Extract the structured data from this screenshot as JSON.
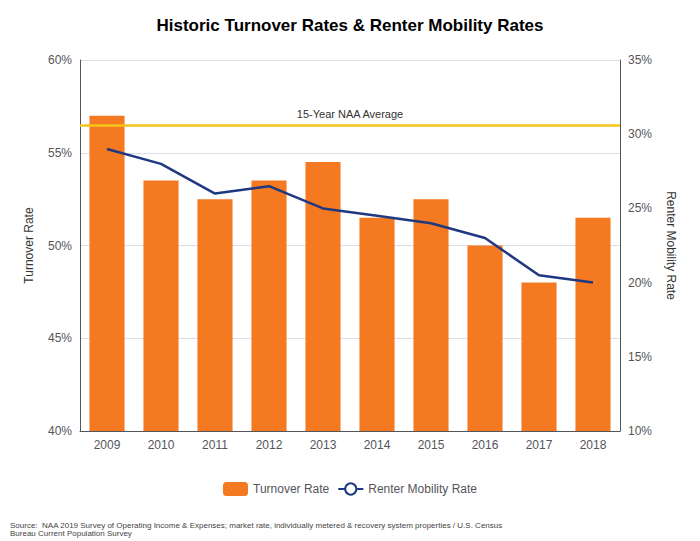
{
  "chart_data": {
    "type": "bar",
    "title": "Historic Turnover Rates & Renter Mobility Rates",
    "ylabel": "Turnover Rate",
    "y2label": "Renter Mobility Rate",
    "categories": [
      "2009",
      "2010",
      "2011",
      "2012",
      "2013",
      "2014",
      "2015",
      "2016",
      "2017",
      "2018"
    ],
    "series": [
      {
        "name": "Turnover Rate",
        "type": "bar",
        "color": "#F47920",
        "values": [
          57.0,
          53.5,
          52.5,
          53.5,
          54.5,
          51.5,
          52.5,
          50.0,
          48.0,
          51.5
        ]
      },
      {
        "name": "Renter Mobility Rate",
        "type": "line",
        "color": "#1F3882",
        "axis": "y2",
        "values": [
          29.0,
          28.0,
          26.0,
          26.5,
          25.0,
          24.5,
          24.0,
          23.0,
          20.5,
          20.0
        ]
      }
    ],
    "hlines": [
      {
        "y": 56.5,
        "label": "15-Year NAA Average",
        "color": "#F5C518"
      }
    ],
    "ylim": [
      40,
      60
    ],
    "yticks": [
      {
        "value": 40,
        "label": "40%"
      },
      {
        "value": 45,
        "label": "45%"
      },
      {
        "value": 50,
        "label": "50%"
      },
      {
        "value": 55,
        "label": "55%"
      },
      {
        "value": 60,
        "label": "60%"
      }
    ],
    "y2lim": [
      10,
      35
    ],
    "y2ticks": [
      {
        "value": 10,
        "label": "10%"
      },
      {
        "value": 15,
        "label": "15%"
      },
      {
        "value": 20,
        "label": "20%"
      },
      {
        "value": 25,
        "label": "25%"
      },
      {
        "value": 30,
        "label": "30%"
      },
      {
        "value": 35,
        "label": "35%"
      }
    ],
    "grid": true,
    "legend": "bottom",
    "source": "Source:  NAA 2019 Survey of Operating Income & Expenses; market rate, individually metered & recovery system properties / U.S. Census\nBureau Current Population Survey"
  }
}
